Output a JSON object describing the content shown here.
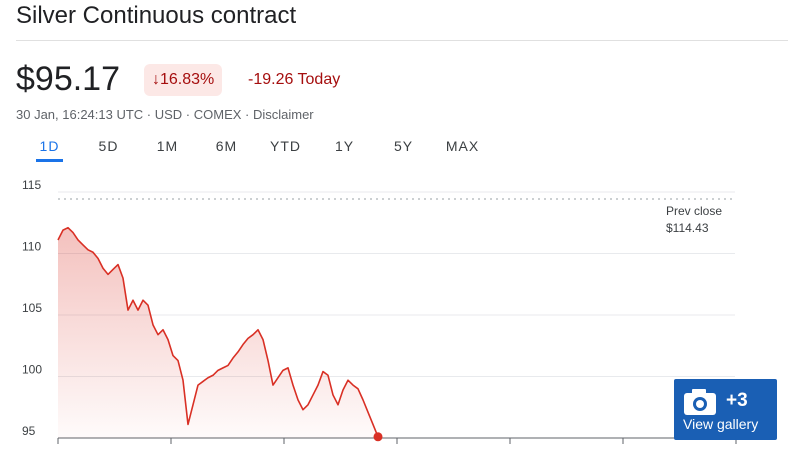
{
  "header": {
    "title": "Silver Continuous contract"
  },
  "quote": {
    "price": "$95.17",
    "change_percent": "16.83%",
    "change_today": "-19.26 Today",
    "info": "30 Jan, 16:24:13 UTC · USD · COMEX · Disclaimer"
  },
  "tabs": [
    "1D",
    "5D",
    "1M",
    "6M",
    "YTD",
    "1Y",
    "5Y",
    "MAX"
  ],
  "chart_data": {
    "type": "line",
    "color": "#d93025",
    "values": [
      111.1,
      111.9,
      112.1,
      111.7,
      111.1,
      110.7,
      110.3,
      110.1,
      109.6,
      108.8,
      108.3,
      108.7,
      109.1,
      108.0,
      105.4,
      106.2,
      105.4,
      106.2,
      105.8,
      104.2,
      103.4,
      103.8,
      103.0,
      101.7,
      101.3,
      99.7,
      96.1,
      97.7,
      99.3,
      99.6,
      99.9,
      100.1,
      100.5,
      100.7,
      100.9,
      101.5,
      102.0,
      102.6,
      103.1,
      103.4,
      103.8,
      103.0,
      101.3,
      99.3,
      99.9,
      100.5,
      100.7,
      99.3,
      98.1,
      97.3,
      97.7,
      98.5,
      99.3,
      100.4,
      100.1,
      98.5,
      97.7,
      98.9,
      99.7,
      99.3,
      99.0,
      98.1,
      97.1,
      96.1,
      95.1
    ],
    "ylim": [
      95,
      115
    ],
    "yticks": [
      95,
      100,
      105,
      110,
      115
    ],
    "grid": true,
    "prev_close": 114.43,
    "prev_close_title": "Prev close",
    "prev_close_label": "$114.43"
  },
  "gallery": {
    "count": "+3",
    "label": "View gallery"
  }
}
